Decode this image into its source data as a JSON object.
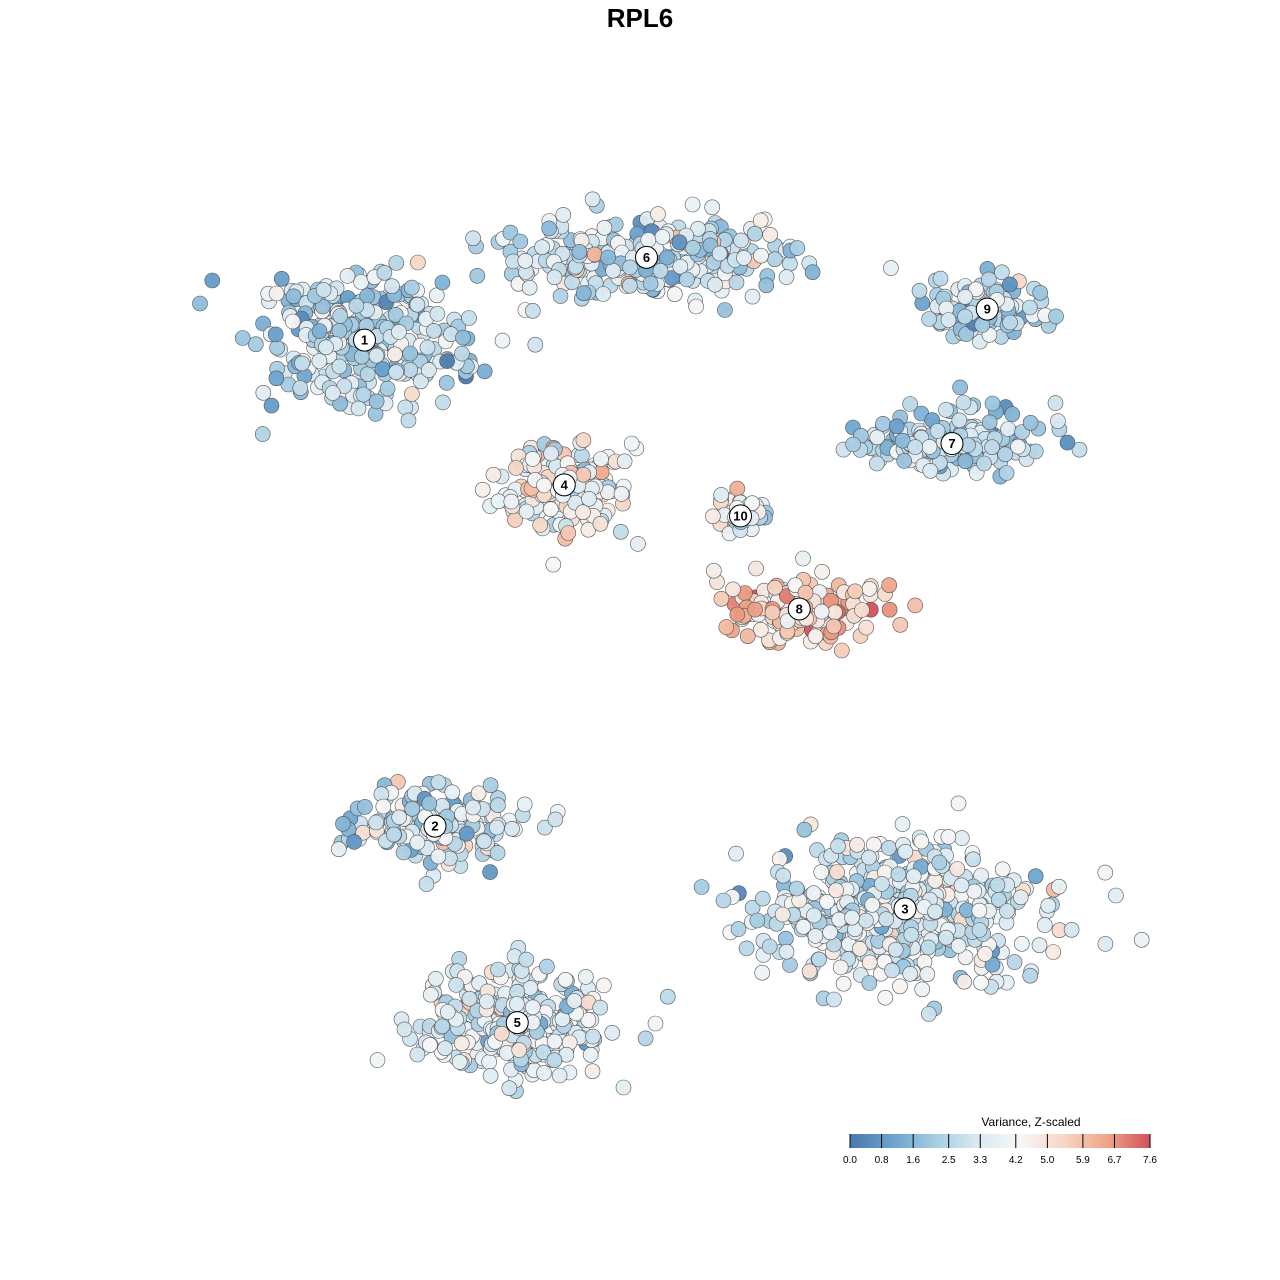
{
  "chart_data": {
    "type": "scatter",
    "title": "RPL6",
    "xlabel": "",
    "ylabel": "",
    "grid": false,
    "legend_position": "bottom-right",
    "legend": {
      "title": "Variance, Z-scaled",
      "ticks": [
        "0.0",
        "0.8",
        "1.6",
        "2.5",
        "3.3",
        "4.2",
        "5.0",
        "5.9",
        "6.7",
        "7.6"
      ],
      "range": [
        0.0,
        7.6
      ],
      "colors": [
        "#4a78ad",
        "#6aa3cf",
        "#a6cde2",
        "#dbeaf2",
        "#f7f7f7",
        "#f6d6c4",
        "#efa487",
        "#d2505c"
      ]
    },
    "clusters": [
      {
        "label": "1",
        "x": -26,
        "y": 33,
        "mean_value": 2.6
      },
      {
        "label": "2",
        "x": -20,
        "y": -14,
        "mean_value": 2.8
      },
      {
        "label": "3",
        "x": 20,
        "y": -22,
        "mean_value": 3.2
      },
      {
        "label": "4",
        "x": -9,
        "y": 19,
        "mean_value": 4.2
      },
      {
        "label": "5",
        "x": -13,
        "y": -33,
        "mean_value": 3.4
      },
      {
        "label": "6",
        "x": -2,
        "y": 41,
        "mean_value": 3.0
      },
      {
        "label": "7",
        "x": 24,
        "y": 23,
        "mean_value": 2.4
      },
      {
        "label": "8",
        "x": 11,
        "y": 7,
        "mean_value": 5.6
      },
      {
        "label": "9",
        "x": 27,
        "y": 36,
        "mean_value": 2.6
      },
      {
        "label": "10",
        "x": 6,
        "y": 16,
        "mean_value": 3.8
      }
    ],
    "xlim": [
      -40,
      40
    ],
    "ylim": [
      -40,
      48
    ]
  }
}
